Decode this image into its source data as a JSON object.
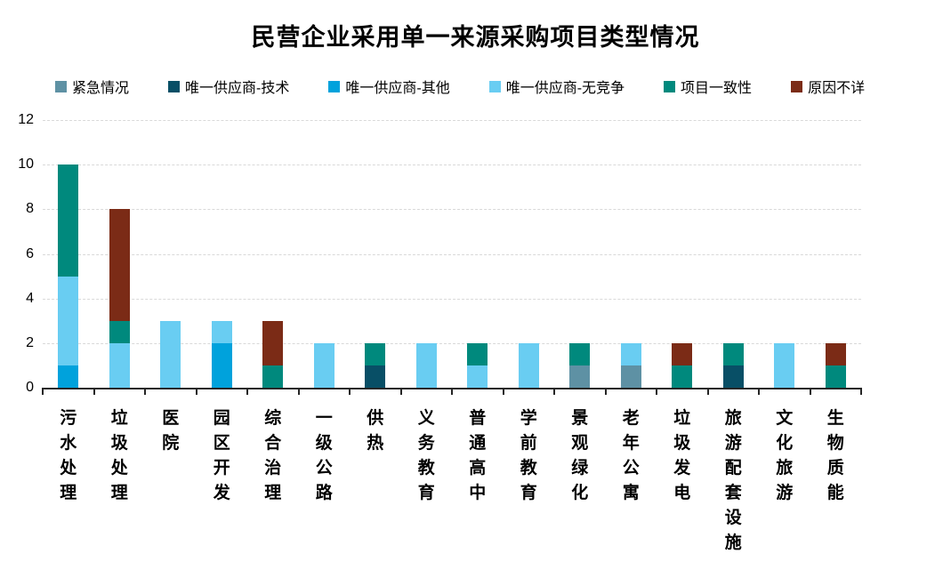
{
  "chart_data": {
    "type": "bar",
    "stacked": true,
    "title": "民营企业采用单一来源采购项目类型情况",
    "xlabel": "",
    "ylabel": "",
    "legend_position": "top",
    "grid": true,
    "categories": [
      "污水处理",
      "垃圾处理",
      "医院",
      "园区开发",
      "综合治理",
      "一级公路",
      "供热",
      "义务教育",
      "普通高中",
      "学前教育",
      "景观绿化",
      "老年公寓",
      "垃圾发电",
      "旅游配套设施",
      "文化旅游",
      "生物质能"
    ],
    "series": [
      {
        "name": "紧急情况",
        "color": "#5E91A4",
        "values": [
          0,
          0,
          0,
          0,
          0,
          0,
          0,
          0,
          0,
          0,
          1,
          1,
          0,
          0,
          0,
          0
        ]
      },
      {
        "name": "唯一供应商-技术",
        "color": "#084F66",
        "values": [
          0,
          0,
          0,
          0,
          0,
          0,
          1,
          0,
          0,
          0,
          0,
          0,
          0,
          1,
          0,
          0
        ]
      },
      {
        "name": "唯一供应商-其他",
        "color": "#00A2DC",
        "values": [
          1,
          0,
          0,
          2,
          0,
          0,
          0,
          0,
          0,
          0,
          0,
          0,
          0,
          0,
          0,
          0
        ]
      },
      {
        "name": "唯一供应商-无竞争",
        "color": "#69CDF2",
        "values": [
          4,
          2,
          3,
          1,
          0,
          2,
          0,
          2,
          1,
          2,
          0,
          1,
          0,
          0,
          2,
          0
        ]
      },
      {
        "name": "项目一致性",
        "color": "#00897D",
        "values": [
          5,
          1,
          0,
          0,
          1,
          0,
          1,
          0,
          1,
          0,
          1,
          0,
          1,
          1,
          0,
          1
        ]
      },
      {
        "name": "原因不详",
        "color": "#7B2B16",
        "values": [
          0,
          5,
          0,
          0,
          2,
          0,
          0,
          0,
          0,
          0,
          0,
          0,
          1,
          0,
          0,
          1
        ]
      }
    ],
    "totals": [
      10,
      8,
      3,
      3,
      3,
      2,
      2,
      2,
      2,
      2,
      2,
      2,
      2,
      2,
      2,
      2
    ],
    "y_axis": {
      "min": 0,
      "max": 12,
      "step": 2,
      "tick_labels": [
        "0",
        "2",
        "4",
        "6",
        "8",
        "10",
        "12"
      ]
    },
    "colors": {
      "background": "#FFFFFF",
      "axis": "#262626",
      "gridline": "#D9D9D9",
      "text": "#000000"
    }
  }
}
